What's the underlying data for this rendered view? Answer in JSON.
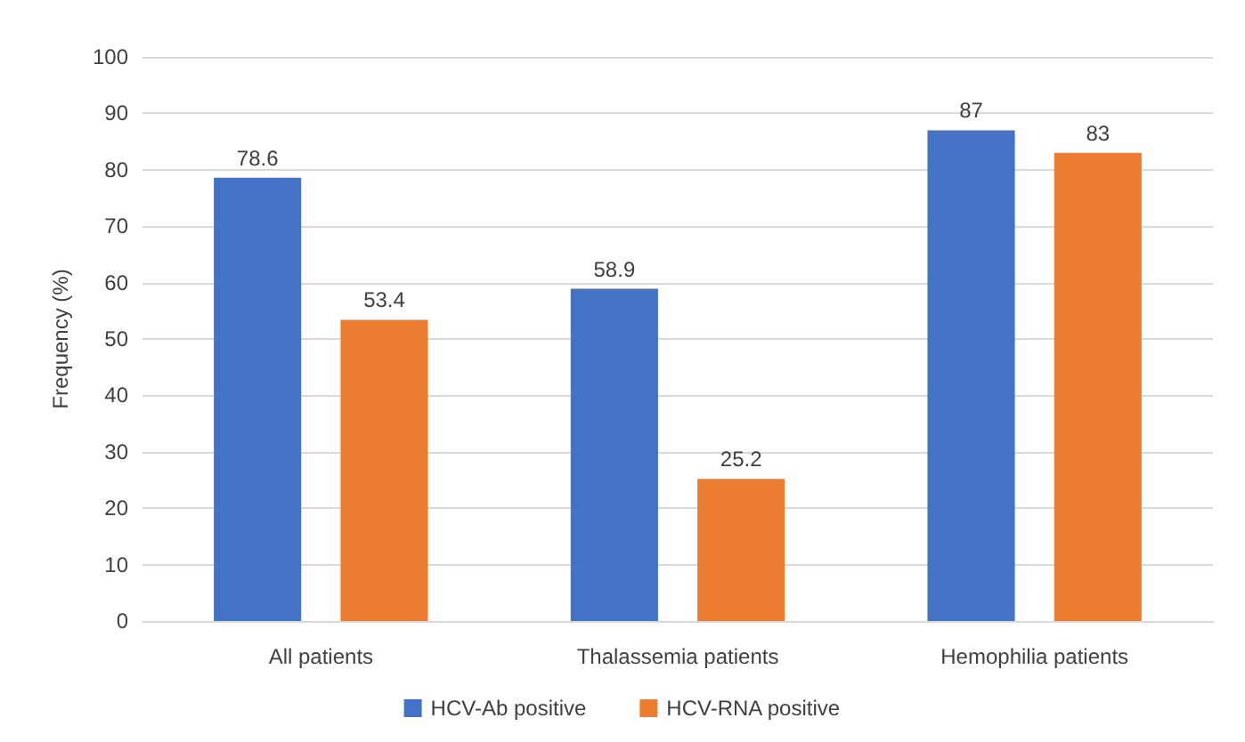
{
  "chart_data": {
    "type": "bar",
    "ylabel": "Frequency (%)",
    "categories": [
      "All patients",
      "Thalassemia patients",
      "Hemophilia patients"
    ],
    "series": [
      {
        "name": "HCV-Ab positive",
        "color": "#4472c4",
        "values": [
          78.6,
          58.9,
          87
        ]
      },
      {
        "name": "HCV-RNA positive",
        "color": "#ed7d31",
        "values": [
          53.4,
          25.2,
          83
        ]
      }
    ],
    "ylim": [
      0,
      100
    ],
    "yticks": [
      0,
      10,
      20,
      30,
      40,
      50,
      60,
      70,
      80,
      90,
      100
    ],
    "grid": "y",
    "legend": "bottom",
    "data_labels": true
  }
}
